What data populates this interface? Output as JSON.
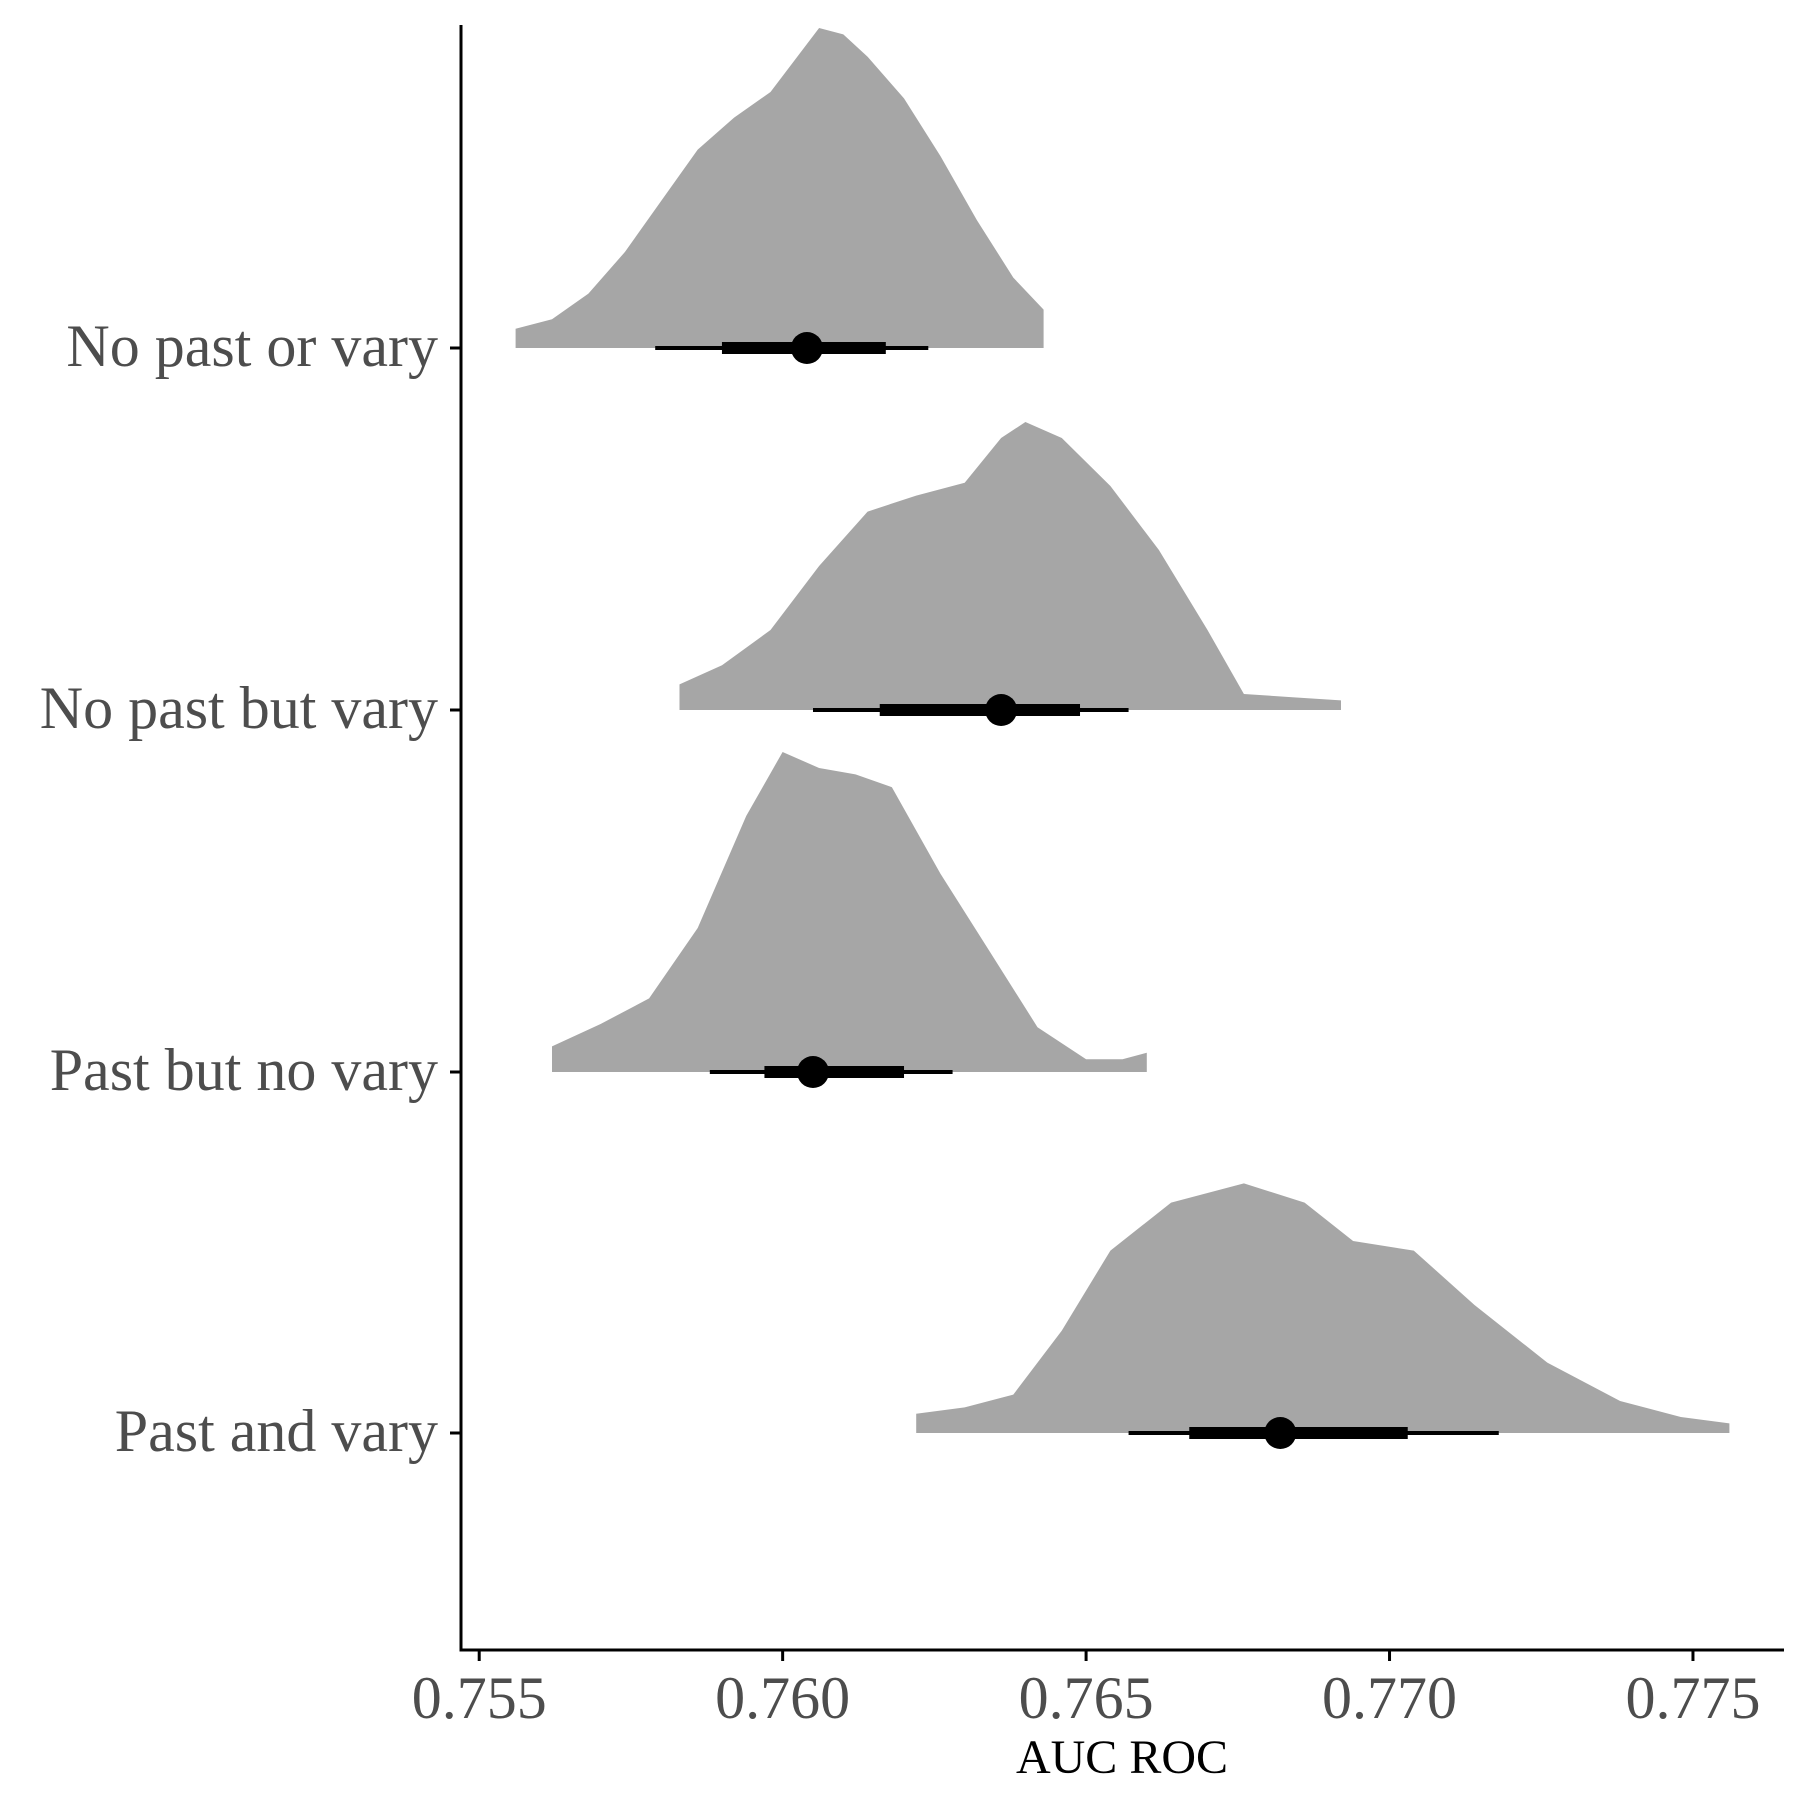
{
  "chart_data": {
    "type": "halfeye",
    "xlabel": "AUC ROC",
    "ylabel": "",
    "xlim": [
      0.7547,
      0.7765
    ],
    "x_ticks": [
      0.755,
      0.76,
      0.765,
      0.77,
      0.775
    ],
    "x_tick_labels": [
      "0.755",
      "0.760",
      "0.765",
      "0.770",
      "0.775"
    ],
    "grid": false,
    "legend": "none",
    "fill_color": "#a6a6a6",
    "interval_color": "#000000",
    "categories": [
      "No past or vary",
      "No past but vary",
      "Past but no vary",
      "Past and vary"
    ],
    "series": [
      {
        "category": "No past or vary",
        "point": 0.7604,
        "interval_66": [
          0.759,
          0.7617
        ],
        "interval_95": [
          0.7579,
          0.7624
        ],
        "density": [
          [
            0.7556,
            0.06
          ],
          [
            0.7562,
            0.09
          ],
          [
            0.7568,
            0.17
          ],
          [
            0.7574,
            0.3
          ],
          [
            0.758,
            0.46
          ],
          [
            0.7586,
            0.62
          ],
          [
            0.7592,
            0.72
          ],
          [
            0.7598,
            0.8
          ],
          [
            0.7602,
            0.9
          ],
          [
            0.7606,
            1.0
          ],
          [
            0.761,
            0.98
          ],
          [
            0.7614,
            0.91
          ],
          [
            0.762,
            0.78
          ],
          [
            0.7626,
            0.6
          ],
          [
            0.7632,
            0.4
          ],
          [
            0.7638,
            0.22
          ],
          [
            0.7643,
            0.12
          ]
        ]
      },
      {
        "category": "No past but vary",
        "point": 0.7636,
        "interval_66": [
          0.7616,
          0.7649
        ],
        "interval_95": [
          0.7605,
          0.7657
        ],
        "density": [
          [
            0.7583,
            0.08
          ],
          [
            0.759,
            0.14
          ],
          [
            0.7598,
            0.25
          ],
          [
            0.7606,
            0.45
          ],
          [
            0.7614,
            0.62
          ],
          [
            0.7622,
            0.67
          ],
          [
            0.763,
            0.71
          ],
          [
            0.7636,
            0.85
          ],
          [
            0.764,
            0.9
          ],
          [
            0.7646,
            0.85
          ],
          [
            0.7654,
            0.7
          ],
          [
            0.7662,
            0.5
          ],
          [
            0.767,
            0.25
          ],
          [
            0.7676,
            0.05
          ],
          [
            0.7684,
            0.04
          ],
          [
            0.7692,
            0.03
          ]
        ]
      },
      {
        "category": "Past but no vary",
        "point": 0.7605,
        "interval_66": [
          0.7597,
          0.762
        ],
        "interval_95": [
          0.7588,
          0.7628
        ],
        "density": [
          [
            0.7562,
            0.08
          ],
          [
            0.757,
            0.15
          ],
          [
            0.7578,
            0.23
          ],
          [
            0.7586,
            0.45
          ],
          [
            0.7594,
            0.8
          ],
          [
            0.76,
            1.0
          ],
          [
            0.7606,
            0.95
          ],
          [
            0.7612,
            0.93
          ],
          [
            0.7618,
            0.89
          ],
          [
            0.7626,
            0.62
          ],
          [
            0.7634,
            0.38
          ],
          [
            0.7642,
            0.14
          ],
          [
            0.765,
            0.04
          ],
          [
            0.7656,
            0.04
          ],
          [
            0.766,
            0.06
          ]
        ]
      },
      {
        "category": "Past and vary",
        "point": 0.7682,
        "interval_66": [
          0.7667,
          0.7703
        ],
        "interval_95": [
          0.7657,
          0.7718
        ],
        "density": [
          [
            0.7622,
            0.06
          ],
          [
            0.763,
            0.08
          ],
          [
            0.7638,
            0.12
          ],
          [
            0.7646,
            0.32
          ],
          [
            0.7654,
            0.57
          ],
          [
            0.7664,
            0.72
          ],
          [
            0.7676,
            0.78
          ],
          [
            0.7686,
            0.72
          ],
          [
            0.7694,
            0.6
          ],
          [
            0.7704,
            0.57
          ],
          [
            0.7714,
            0.4
          ],
          [
            0.7726,
            0.22
          ],
          [
            0.7738,
            0.1
          ],
          [
            0.7748,
            0.05
          ],
          [
            0.7756,
            0.03
          ]
        ]
      }
    ]
  }
}
